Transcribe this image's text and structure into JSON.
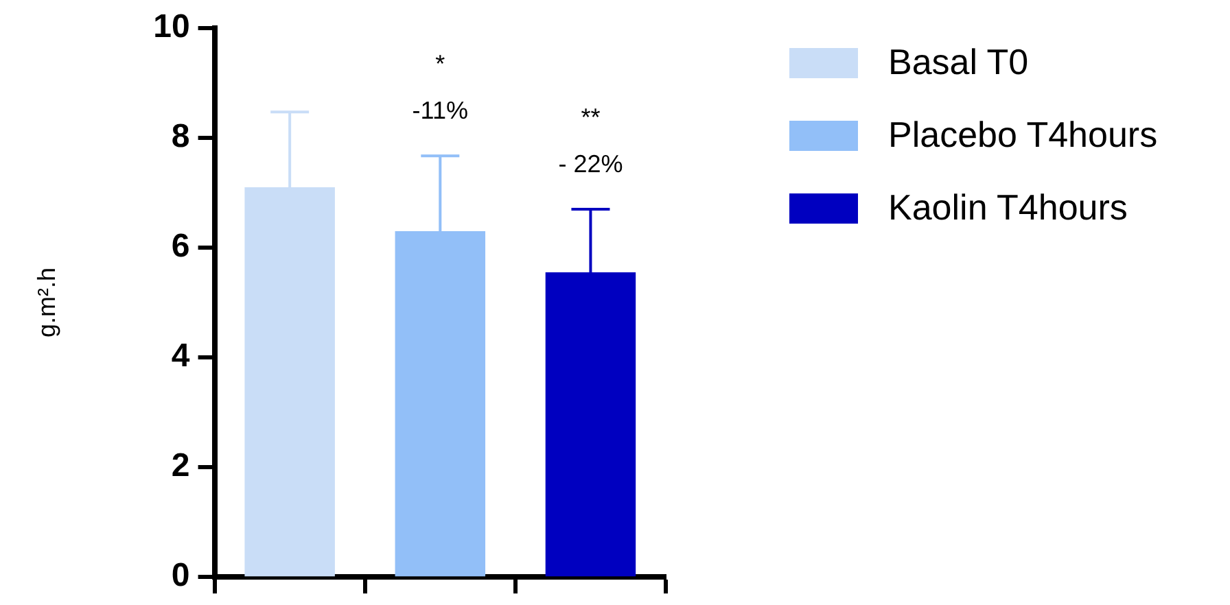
{
  "chart_data": {
    "type": "bar",
    "ylabel": "g.m².h",
    "categories": [
      null,
      null,
      null
    ],
    "series": [
      {
        "name": "Basal T0",
        "color": "#c9ddf7",
        "values": [
          7.1,
          null,
          null
        ],
        "errors": [
          [
            7.1,
            8.47
          ],
          null,
          null
        ]
      },
      {
        "name": "Placebo T4hours",
        "color": "#92bff8",
        "values": [
          null,
          6.3,
          null
        ],
        "errors": [
          null,
          [
            6.3,
            7.67
          ],
          null
        ]
      },
      {
        "name": "Kaolin T4hours",
        "color": "#0000c0",
        "values": [
          null,
          null,
          5.55
        ],
        "errors": [
          null,
          null,
          [
            5.55,
            6.7
          ]
        ]
      }
    ],
    "annotations": [
      "*",
      "-11%",
      "**",
      "- 22%"
    ],
    "ylim": [
      0,
      10
    ],
    "yticks": [
      0,
      2,
      4,
      6,
      8,
      10
    ],
    "grid": false,
    "legend": "top right",
    "tick_labels": "y"
  }
}
